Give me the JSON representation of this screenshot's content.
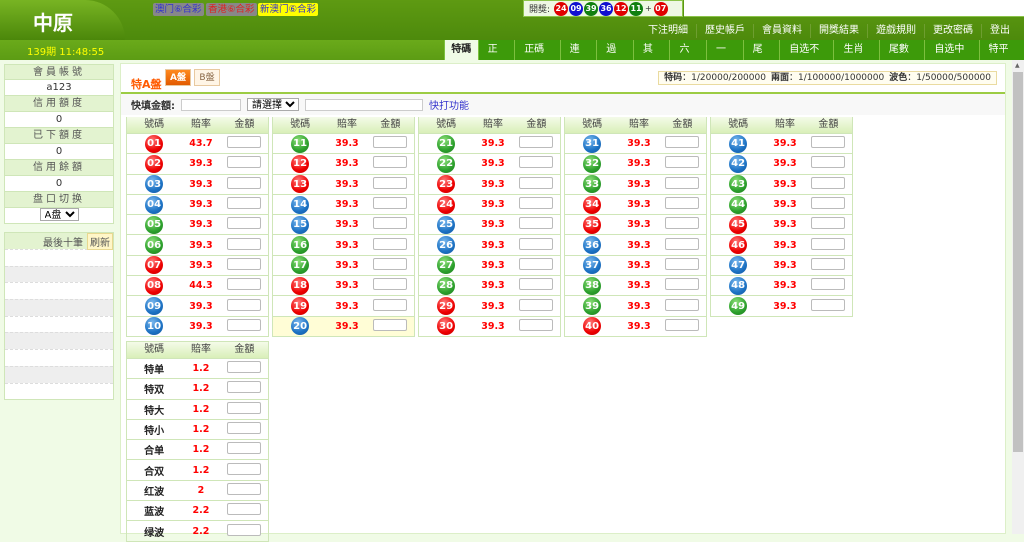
{
  "header": {
    "logo": "中原",
    "period": "139期 11:48:55",
    "lotteries": [
      {
        "label": "澳门⑥合彩",
        "color": "#3333cc",
        "bg": "#888888"
      },
      {
        "label": "香港⑥合彩",
        "color": "#dd2222",
        "bg": "#888888"
      },
      {
        "label": "新澳门⑥合彩",
        "color": "#3333cc",
        "bg": "#ffff00"
      }
    ],
    "draw_label": "開獎:",
    "draw": [
      {
        "n": "24",
        "c": "#e00000"
      },
      {
        "n": "09",
        "c": "#1010d0"
      },
      {
        "n": "39",
        "c": "#108010"
      },
      {
        "n": "36",
        "c": "#1010d0"
      },
      {
        "n": "12",
        "c": "#e00000"
      },
      {
        "n": "11",
        "c": "#108010"
      },
      {
        "n": "+",
        "c": ""
      },
      {
        "n": "07",
        "c": "#e00000"
      }
    ],
    "nav": [
      "下注明細",
      "歷史帳戶",
      "會員資料",
      "開獎結果",
      "遊戲規則",
      "更改密碼",
      "登出"
    ],
    "tabs": [
      "特碼",
      "正碼",
      "正碼特",
      "連碼",
      "過關",
      "其他",
      "六肖",
      "一肖",
      "尾数",
      "自选不中",
      "生肖連",
      "尾數連",
      "自选中一",
      "特平中"
    ],
    "active_tab": "特碼"
  },
  "sidebar": {
    "items": [
      {
        "label": "會員帳號",
        "value": "a123"
      },
      {
        "label": "信用額度",
        "value": "0"
      },
      {
        "label": "已下額度",
        "value": "0"
      },
      {
        "label": "信用餘額",
        "value": "0"
      }
    ],
    "switch_label": "盘口切换",
    "switch_value": "A盘",
    "last_label": "最後十筆",
    "refresh": "刷新"
  },
  "main": {
    "title": "特A盤",
    "a_label": "A盤",
    "b_label": "B盤",
    "limits": [
      {
        "k": "特码",
        "v": "：1/20000/200000"
      },
      {
        "k": "兩面",
        "v": "：1/100000/1000000"
      },
      {
        "k": "波色",
        "v": "：1/50000/500000"
      }
    ],
    "quick_label": "快填金額:",
    "select_placeholder": "請選擇",
    "quick_link": "快打功能",
    "headers": [
      "號碼",
      "賠率",
      "金額"
    ],
    "highlight_row": "20",
    "numbers": [
      [
        "01",
        "red",
        "43.7"
      ],
      [
        "02",
        "red",
        "39.3"
      ],
      [
        "03",
        "blue",
        "39.3"
      ],
      [
        "04",
        "blue",
        "39.3"
      ],
      [
        "05",
        "green",
        "39.3"
      ],
      [
        "06",
        "green",
        "39.3"
      ],
      [
        "07",
        "red",
        "39.3"
      ],
      [
        "08",
        "red",
        "44.3"
      ],
      [
        "09",
        "blue",
        "39.3"
      ],
      [
        "10",
        "blue",
        "39.3"
      ],
      [
        "11",
        "green",
        "39.3"
      ],
      [
        "12",
        "red",
        "39.3"
      ],
      [
        "13",
        "red",
        "39.3"
      ],
      [
        "14",
        "blue",
        "39.3"
      ],
      [
        "15",
        "blue",
        "39.3"
      ],
      [
        "16",
        "green",
        "39.3"
      ],
      [
        "17",
        "green",
        "39.3"
      ],
      [
        "18",
        "red",
        "39.3"
      ],
      [
        "19",
        "red",
        "39.3"
      ],
      [
        "20",
        "blue",
        "39.3"
      ],
      [
        "21",
        "green",
        "39.3"
      ],
      [
        "22",
        "green",
        "39.3"
      ],
      [
        "23",
        "red",
        "39.3"
      ],
      [
        "24",
        "red",
        "39.3"
      ],
      [
        "25",
        "blue",
        "39.3"
      ],
      [
        "26",
        "blue",
        "39.3"
      ],
      [
        "27",
        "green",
        "39.3"
      ],
      [
        "28",
        "green",
        "39.3"
      ],
      [
        "29",
        "red",
        "39.3"
      ],
      [
        "30",
        "red",
        "39.3"
      ],
      [
        "31",
        "blue",
        "39.3"
      ],
      [
        "32",
        "green",
        "39.3"
      ],
      [
        "33",
        "green",
        "39.3"
      ],
      [
        "34",
        "red",
        "39.3"
      ],
      [
        "35",
        "red",
        "39.3"
      ],
      [
        "36",
        "blue",
        "39.3"
      ],
      [
        "37",
        "blue",
        "39.3"
      ],
      [
        "38",
        "green",
        "39.3"
      ],
      [
        "39",
        "green",
        "39.3"
      ],
      [
        "40",
        "red",
        "39.3"
      ],
      [
        "41",
        "blue",
        "39.3"
      ],
      [
        "42",
        "blue",
        "39.3"
      ],
      [
        "43",
        "green",
        "39.3"
      ],
      [
        "44",
        "green",
        "39.3"
      ],
      [
        "45",
        "red",
        "39.3"
      ],
      [
        "46",
        "red",
        "39.3"
      ],
      [
        "47",
        "blue",
        "39.3"
      ],
      [
        "48",
        "blue",
        "39.3"
      ],
      [
        "49",
        "green",
        "39.3"
      ]
    ],
    "extra": [
      [
        "特单",
        "1.2"
      ],
      [
        "特双",
        "1.2"
      ],
      [
        "特大",
        "1.2"
      ],
      [
        "特小",
        "1.2"
      ],
      [
        "合单",
        "1.2"
      ],
      [
        "合双",
        "1.2"
      ],
      [
        "红波",
        "2"
      ],
      [
        "蓝波",
        "2.2"
      ],
      [
        "绿波",
        "2.2"
      ]
    ]
  }
}
